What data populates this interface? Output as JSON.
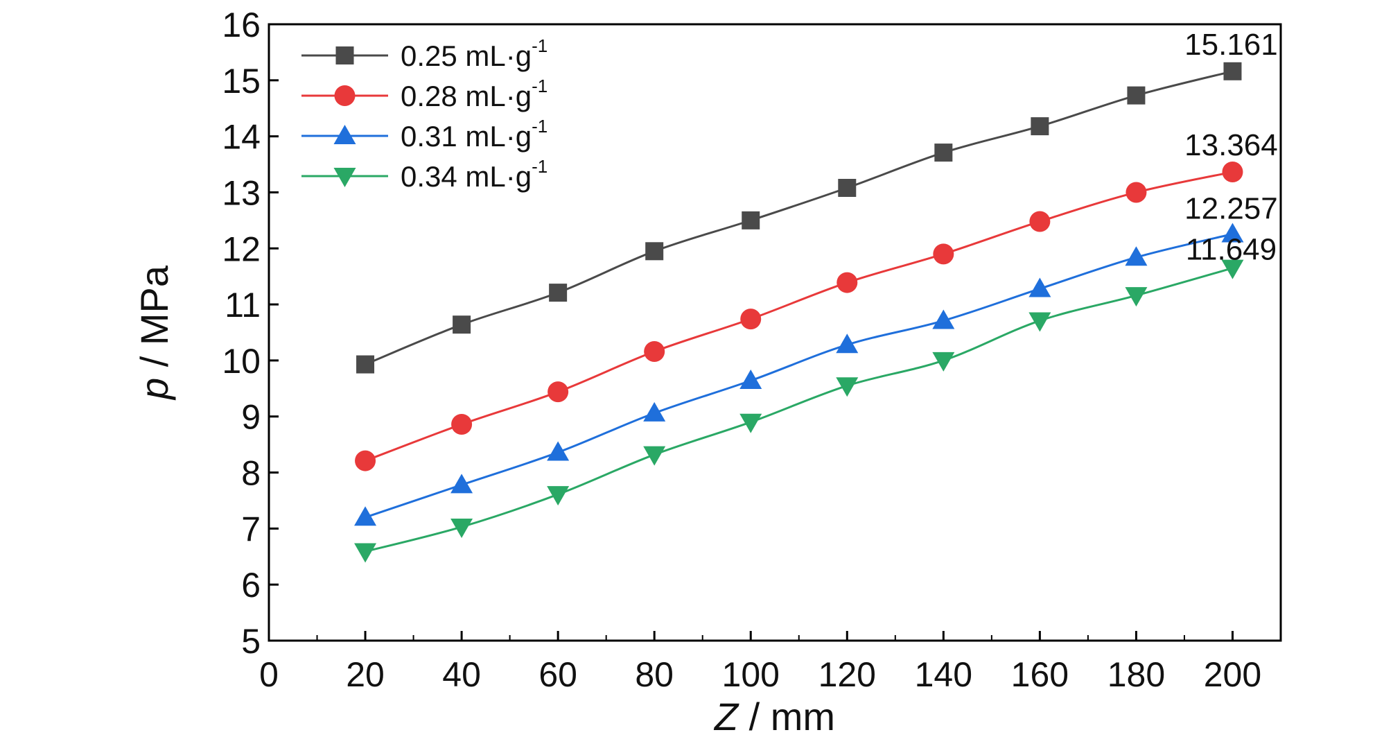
{
  "chart_data": {
    "type": "line",
    "xlabel_italic": "Z",
    "xlabel_rest": " / mm",
    "ylabel_italic": "p",
    "ylabel_rest": " / MPa",
    "xlim": [
      0,
      210
    ],
    "ylim": [
      5,
      16
    ],
    "xticks": [
      0,
      20,
      40,
      60,
      80,
      100,
      120,
      140,
      160,
      180,
      200
    ],
    "yticks": [
      5,
      6,
      7,
      8,
      9,
      10,
      11,
      12,
      13,
      14,
      15,
      16
    ],
    "x": [
      20,
      40,
      60,
      80,
      100,
      120,
      140,
      160,
      180,
      200
    ],
    "series": [
      {
        "name": "0.25 mL·g",
        "sup": "-1",
        "color": "#4a4a4a",
        "marker": "square",
        "values": [
          9.93,
          10.64,
          11.21,
          11.95,
          12.5,
          13.08,
          13.71,
          14.18,
          14.73,
          15.161
        ]
      },
      {
        "name": "0.28 mL·g",
        "sup": "-1",
        "color": "#e8393a",
        "marker": "circle",
        "values": [
          8.21,
          8.86,
          9.44,
          10.16,
          10.74,
          11.39,
          11.9,
          12.48,
          13.0,
          13.364
        ]
      },
      {
        "name": "0.31 mL·g",
        "sup": "-1",
        "color": "#1f6fdb",
        "marker": "triangle-up",
        "values": [
          7.2,
          7.78,
          8.36,
          9.06,
          9.64,
          10.28,
          10.71,
          11.28,
          11.84,
          12.257
        ]
      },
      {
        "name": "0.34 mL·g",
        "sup": "-1",
        "color": "#2aa865",
        "marker": "triangle-down",
        "values": [
          6.59,
          7.03,
          7.61,
          8.32,
          8.9,
          9.55,
          10.0,
          10.71,
          11.16,
          11.649
        ]
      }
    ],
    "annotations": [
      "15.161",
      "13.364",
      "12.257",
      "11.649"
    ],
    "legend_position": "top-left",
    "grid": false
  }
}
